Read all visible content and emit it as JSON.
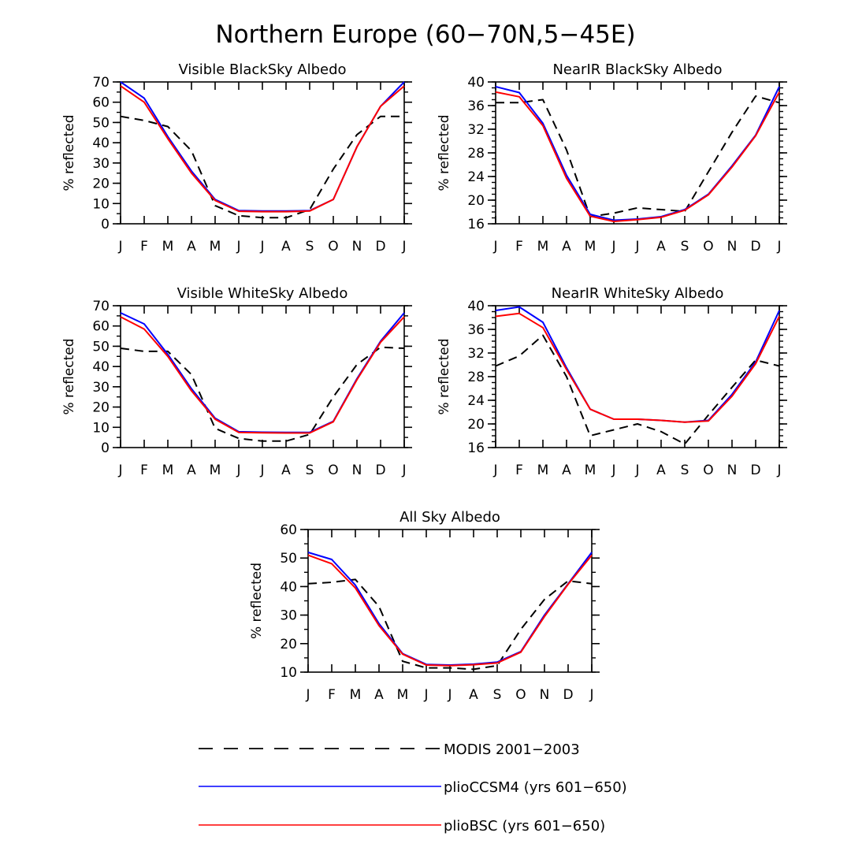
{
  "title": "Northern Europe (60−70N,5−45E)",
  "ylabel": "% reflected",
  "months": [
    "J",
    "F",
    "M",
    "A",
    "M",
    "J",
    "J",
    "A",
    "S",
    "O",
    "N",
    "D",
    "J"
  ],
  "colors": {
    "modis": "#000000",
    "ccsm4": "#0000ff",
    "bsc": "#ff0000"
  },
  "legend": [
    {
      "key": "modis",
      "label": "MODIS 2001−2003",
      "style": "dashed"
    },
    {
      "key": "ccsm4",
      "label": "plioCCSM4 (yrs 601−650)",
      "style": "solid"
    },
    {
      "key": "bsc",
      "label": "plioBSC (yrs 601−650)",
      "style": "solid"
    }
  ],
  "chart_data": [
    {
      "type": "line",
      "title": "Visible BlackSky Albedo",
      "xlabel": "",
      "ylabel": "% reflected",
      "ylim": [
        0,
        70
      ],
      "yticks": [
        0,
        10,
        20,
        30,
        40,
        50,
        60,
        70
      ],
      "yminor": 5,
      "series": [
        {
          "name": "MODIS 2001−2003",
          "key": "modis",
          "values": [
            53,
            51,
            48,
            36,
            9,
            4,
            3,
            3,
            7,
            27,
            44,
            53,
            53
          ]
        },
        {
          "name": "plioCCSM4 (yrs 601−650)",
          "key": "ccsm4",
          "values": [
            70,
            62,
            43,
            26,
            12,
            6.5,
            6.3,
            6.3,
            6.5,
            12,
            38,
            58,
            70
          ]
        },
        {
          "name": "plioBSC (yrs 601−650)",
          "key": "bsc",
          "values": [
            68,
            60,
            42,
            25,
            11.5,
            6.2,
            6,
            6,
            6.3,
            12,
            38,
            58,
            68
          ]
        }
      ]
    },
    {
      "type": "line",
      "title": "NearIR BlackSky Albedo",
      "xlabel": "",
      "ylabel": "% reflected",
      "ylim": [
        16,
        40
      ],
      "yticks": [
        16,
        20,
        24,
        28,
        32,
        36,
        40
      ],
      "yminor": 1,
      "series": [
        {
          "name": "MODIS 2001−2003",
          "key": "modis",
          "values": [
            36.5,
            36.5,
            37,
            28.5,
            17.2,
            17.8,
            18.7,
            18.4,
            18.1,
            24.8,
            31.5,
            37.6,
            36.5
          ]
        },
        {
          "name": "plioCCSM4 (yrs 601−650)",
          "key": "ccsm4",
          "values": [
            39.2,
            38.2,
            33,
            24.2,
            17.6,
            16.6,
            16.8,
            17.2,
            18.4,
            21,
            25.8,
            31,
            39.2
          ]
        },
        {
          "name": "plioBSC (yrs 601−650)",
          "key": "bsc",
          "values": [
            38.3,
            37.5,
            32.6,
            23.7,
            17.3,
            16.4,
            16.7,
            17.1,
            18.3,
            20.9,
            25.6,
            30.9,
            38.3
          ]
        }
      ]
    },
    {
      "type": "line",
      "title": "Visible WhiteSky Albedo",
      "xlabel": "",
      "ylabel": "% reflected",
      "ylim": [
        0,
        70
      ],
      "yticks": [
        0,
        10,
        20,
        30,
        40,
        50,
        60,
        70
      ],
      "yminor": 5,
      "series": [
        {
          "name": "MODIS 2001−2003",
          "key": "modis",
          "values": [
            49,
            47.5,
            47.5,
            36,
            9.5,
            4.5,
            3.2,
            3.2,
            6.5,
            25,
            41,
            49.5,
            49
          ]
        },
        {
          "name": "plioCCSM4 (yrs 601−650)",
          "key": "ccsm4",
          "values": [
            66.5,
            61,
            46,
            29,
            14.5,
            7.8,
            7.6,
            7.5,
            7.5,
            13,
            34,
            52.5,
            66.5
          ]
        },
        {
          "name": "plioBSC (yrs 601−650)",
          "key": "bsc",
          "values": [
            64.5,
            58.5,
            45,
            28,
            14,
            7.5,
            7.3,
            7.2,
            7.2,
            12.7,
            33.5,
            52,
            64.5
          ]
        }
      ]
    },
    {
      "type": "line",
      "title": "NearIR WhiteSky Albedo",
      "xlabel": "",
      "ylabel": "% reflected",
      "ylim": [
        16,
        40
      ],
      "yticks": [
        16,
        20,
        24,
        28,
        32,
        36,
        40
      ],
      "yminor": 1,
      "series": [
        {
          "name": "MODIS 2001−2003",
          "key": "modis",
          "values": [
            29.8,
            31.5,
            35,
            28,
            18,
            19,
            20,
            18.7,
            16.6,
            21.5,
            26.2,
            30.8,
            29.8
          ]
        },
        {
          "name": "plioCCSM4 (yrs 601−650)",
          "key": "ccsm4",
          "values": [
            39.2,
            39.8,
            37.2,
            29.5,
            22.5,
            20.8,
            20.8,
            20.6,
            20.3,
            20.6,
            25,
            30.5,
            39.2
          ]
        },
        {
          "name": "plioBSC (yrs 601−650)",
          "key": "bsc",
          "values": [
            38.2,
            38.7,
            36.3,
            29.2,
            22.5,
            20.8,
            20.8,
            20.6,
            20.3,
            20.5,
            24.7,
            30.2,
            38.2
          ]
        }
      ]
    },
    {
      "type": "line",
      "title": "All Sky Albedo",
      "xlabel": "",
      "ylabel": "% reflected",
      "ylim": [
        10,
        60
      ],
      "yticks": [
        10,
        20,
        30,
        40,
        50,
        60
      ],
      "yminor": 5,
      "series": [
        {
          "name": "MODIS 2001−2003",
          "key": "modis",
          "values": [
            41,
            41.5,
            42.5,
            33,
            13.8,
            11.5,
            11.5,
            11,
            12.3,
            25,
            35.5,
            42,
            41
          ]
        },
        {
          "name": "plioCCSM4 (yrs 601−650)",
          "key": "ccsm4",
          "values": [
            52,
            49.5,
            40.5,
            27,
            16.5,
            12.7,
            12.5,
            12.8,
            13.5,
            17.2,
            30,
            41,
            52
          ]
        },
        {
          "name": "plioBSC (yrs 601−650)",
          "key": "bsc",
          "values": [
            51,
            48,
            39.5,
            26.3,
            16.3,
            12.5,
            12.3,
            12.6,
            13.2,
            17,
            29.5,
            40.8,
            51
          ]
        }
      ]
    }
  ]
}
